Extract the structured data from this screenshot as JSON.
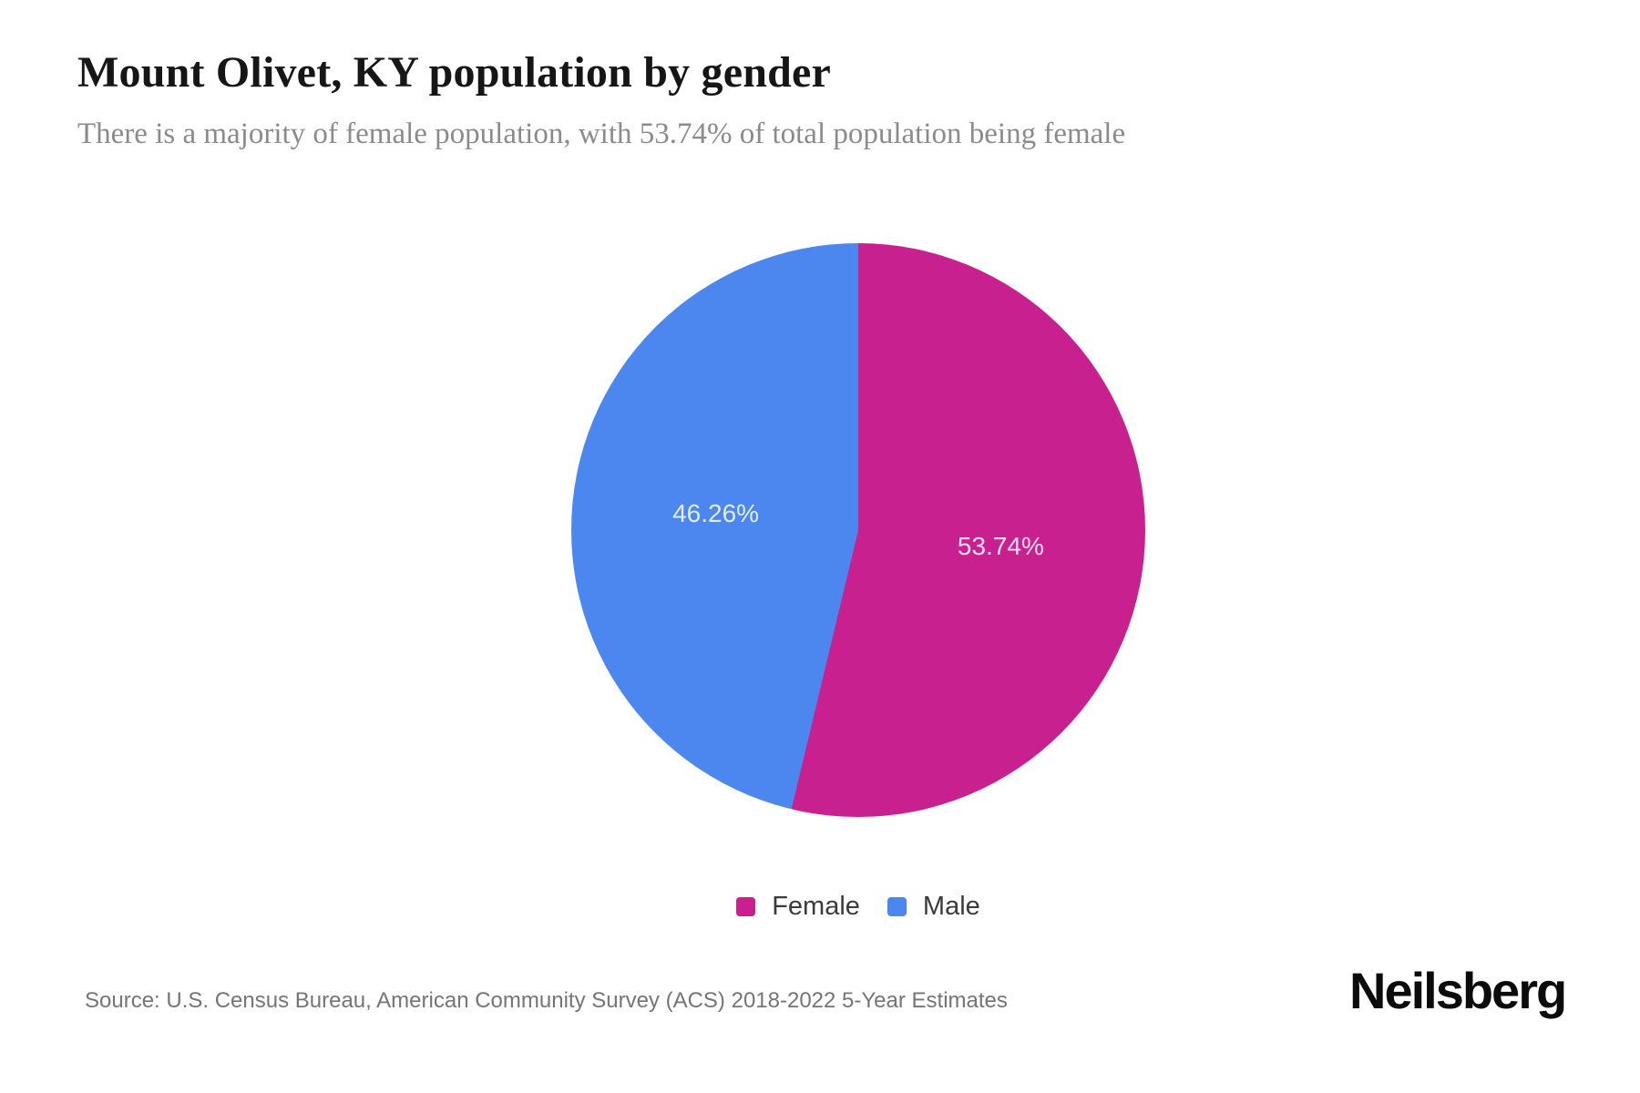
{
  "header": {
    "title": "Mount Olivet, KY population by gender",
    "subtitle": "There is a majority of female population, with 53.74% of total population being female"
  },
  "chart_data": {
    "type": "pie",
    "title": "Mount Olivet, KY population by gender",
    "start_angle_deg": 0,
    "direction": "clockwise",
    "legend_position": "bottom",
    "label_color": "rgba(255,255,255,0.85)",
    "series": [
      {
        "name": "Female",
        "value": 53.74,
        "label": "53.74%",
        "color": "#c9208f"
      },
      {
        "name": "Male",
        "value": 46.26,
        "label": "46.26%",
        "color": "#4b87ee"
      }
    ]
  },
  "footer": {
    "source": "Source: U.S. Census Bureau, American Community Survey (ACS) 2018-2022 5-Year Estimates",
    "brand": "Neilsberg"
  }
}
